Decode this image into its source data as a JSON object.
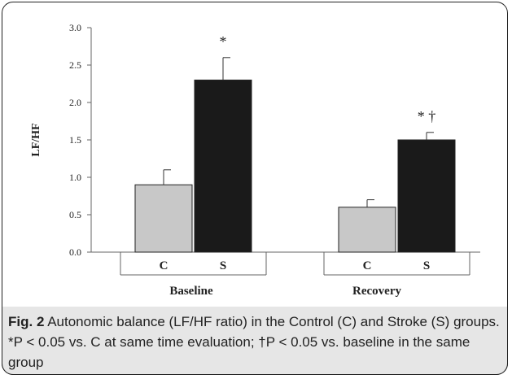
{
  "chart_data": {
    "type": "bar",
    "ylabel": "LF/HF",
    "ylim": [
      0,
      3.0
    ],
    "yticks": [
      "0.0",
      "0.5",
      "1.0",
      "1.5",
      "2.0",
      "2.5",
      "3.0"
    ],
    "groups": [
      {
        "label": "Baseline",
        "bars": [
          {
            "category": "C",
            "value": 0.9,
            "error": 0.2,
            "color": "#c8c8c8",
            "annotation": ""
          },
          {
            "category": "S",
            "value": 2.3,
            "error": 0.3,
            "color": "#1a1a1a",
            "annotation": "*"
          }
        ]
      },
      {
        "label": "Recovery",
        "bars": [
          {
            "category": "C",
            "value": 0.6,
            "error": 0.1,
            "color": "#c8c8c8",
            "annotation": ""
          },
          {
            "category": "S",
            "value": 1.5,
            "error": 0.1,
            "color": "#1a1a1a",
            "annotation": "*  †"
          }
        ]
      }
    ]
  },
  "caption": {
    "label": "Fig. 2",
    "text": "Autonomic balance (LF/HF ratio) in the Control (C) and Stroke (S) groups. *P < 0.05 vs. C at same time evaluation; †P < 0.05 vs. baseline in the same group"
  }
}
